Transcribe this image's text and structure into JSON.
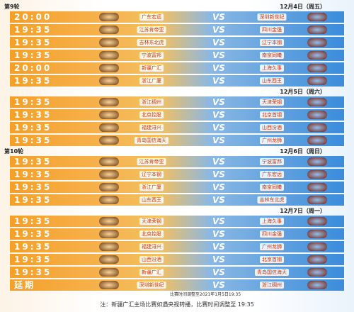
{
  "vs_label": "VS",
  "days": [
    {
      "round": "第9轮",
      "date": "12月4日（周五）",
      "games": [
        {
          "time": "20:00",
          "home": "广东宏远",
          "away": "深圳新世纪"
        },
        {
          "time": "19:35",
          "home": "江苏肯帝亚",
          "away": "四川金强"
        },
        {
          "time": "19:35",
          "home": "吉林东北虎",
          "away": "辽宁本钢"
        },
        {
          "time": "19:35",
          "home": "宁波富邦",
          "away": "南京同曦"
        },
        {
          "time": "20:00",
          "home": "新疆广汇",
          "away": "上海久事"
        },
        {
          "time": "19:35",
          "home": "浙江广厦",
          "away": "山东西王"
        }
      ]
    },
    {
      "date": "12月5日（周六）",
      "games": [
        {
          "time": "19:35",
          "home": "浙江稠州",
          "away": "天津荣钢"
        },
        {
          "time": "19:35",
          "home": "北京控股",
          "away": "北京首钢"
        },
        {
          "time": "19:35",
          "home": "福建浔兴",
          "away": "山西汾酒"
        },
        {
          "time": "19:35",
          "home": "青岛国信海天",
          "away": "广州龙狮"
        }
      ]
    },
    {
      "round": "第10轮",
      "date": "12月6日（周日）",
      "games": [
        {
          "time": "19:35",
          "home": "江苏肯帝亚",
          "away": "宁波富邦"
        },
        {
          "time": "19:35",
          "home": "辽宁本钢",
          "away": "广东宏远"
        },
        {
          "time": "19:35",
          "home": "浙江广厦",
          "away": "南京同曦"
        },
        {
          "time": "19:35",
          "home": "山东西王",
          "away": "吉林东北虎"
        }
      ]
    },
    {
      "date": "12月7日（周一）",
      "games": [
        {
          "time": "19:35",
          "home": "天津荣钢",
          "away": "上海久事"
        },
        {
          "time": "19:35",
          "home": "北京控股",
          "away": "四川金强"
        },
        {
          "time": "19:35",
          "home": "福建浔兴",
          "away": "广州龙狮"
        },
        {
          "time": "19:35",
          "home": "山西汾酒",
          "away": "北京首钢"
        },
        {
          "time": "19:35",
          "home": "新疆广汇",
          "away": "青岛国信海天"
        },
        {
          "time": "延期",
          "home": "深圳新世纪",
          "away": "浙江稠州",
          "note": "比赛时间调整至2021年1月5日19:35"
        }
      ]
    }
  ],
  "footer": "注：新疆广汇主场比赛如遇央视转播，比赛时间调整至 19:35"
}
